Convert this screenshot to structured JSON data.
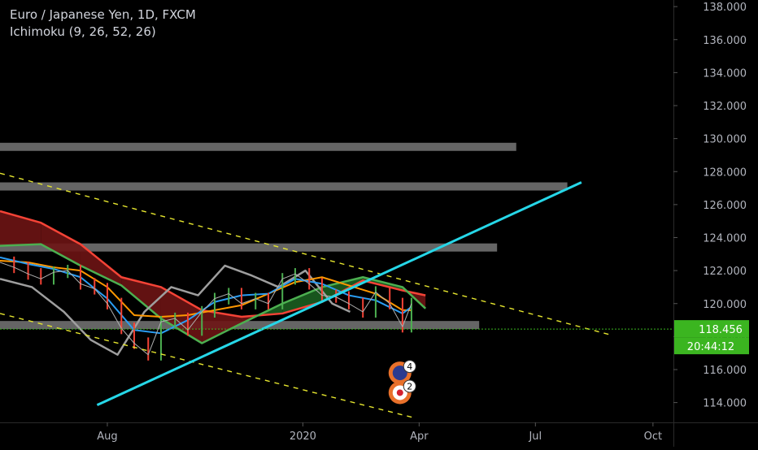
{
  "header": {
    "title": "Euro / Japanese Yen, 1D, FXCM",
    "indicator": "Ichimoku (9, 26, 52, 26)"
  },
  "colors": {
    "background": "#000000",
    "price_line": "#b0b0b0",
    "conversion_line": "#2a9df4",
    "base_line": "#ff9800",
    "lagging_span": "#9e9e9e",
    "span_a": "#4caf50",
    "span_b": "#f44336",
    "cloud_bull": "#1b5e20",
    "cloud_bear": "#6d1414",
    "trend_line": "#26d7e8",
    "channel_line": "#e6e62e",
    "zone": "#777777",
    "price_label_bg": "#3bb520",
    "current_level_line": "#3bb520"
  },
  "chart_data": {
    "type": "line",
    "title": "Euro / Japanese Yen, 1D, FXCM",
    "xlabel": "",
    "ylabel": "",
    "ylim": [
      112.8,
      138.4
    ],
    "xlim": [
      "2019-05-09",
      "2020-10-17"
    ],
    "y_ticks": [
      "114.000",
      "116.000",
      "118.000",
      "120.000",
      "122.000",
      "124.000",
      "126.000",
      "128.000",
      "130.000",
      "132.000",
      "134.000",
      "136.000",
      "138.000"
    ],
    "x_ticks": [
      "Aug",
      "2020",
      "Apr",
      "Jul",
      "Oct"
    ],
    "x_tick_dates": [
      "2019-08-01",
      "2020-01-01",
      "2020-04-01",
      "2020-07-01",
      "2020-10-01"
    ],
    "current_price": "118.456",
    "countdown": "20:44:12",
    "series": [
      {
        "role": "price",
        "x": [
          "2019-05-09",
          "2019-05-20",
          "2019-05-31",
          "2019-06-10",
          "2019-06-20",
          "2019-07-01",
          "2019-07-11",
          "2019-07-22",
          "2019-08-01",
          "2019-08-12",
          "2019-08-22",
          "2019-09-02",
          "2019-09-12",
          "2019-09-23",
          "2019-10-03",
          "2019-10-14",
          "2019-10-24",
          "2019-11-04",
          "2019-11-14",
          "2019-11-25",
          "2019-12-05",
          "2019-12-16",
          "2019-12-26",
          "2020-01-06",
          "2020-01-16",
          "2020-01-27",
          "2020-02-06",
          "2020-02-17",
          "2020-02-27",
          "2020-03-09",
          "2020-03-19",
          "2020-03-26"
        ],
        "y": [
          122.5,
          122.2,
          121.8,
          121.5,
          121.9,
          122.0,
          121.2,
          120.9,
          120.0,
          118.5,
          117.6,
          116.9,
          118.9,
          119.1,
          118.4,
          119.5,
          120.3,
          120.6,
          120.0,
          120.3,
          120.0,
          121.5,
          121.8,
          121.2,
          120.5,
          120.4,
          120.0,
          119.5,
          120.7,
          120.0,
          118.6,
          120.0
        ]
      },
      {
        "role": "conversion",
        "x": [
          "2019-05-09",
          "2019-05-31",
          "2019-06-20",
          "2019-07-11",
          "2019-08-01",
          "2019-08-22",
          "2019-09-12",
          "2019-10-03",
          "2019-10-24",
          "2019-11-14",
          "2019-12-05",
          "2019-12-26",
          "2020-01-16",
          "2020-02-06",
          "2020-02-27",
          "2020-03-19",
          "2020-03-26"
        ],
        "y": [
          122.8,
          122.4,
          122.1,
          121.6,
          120.3,
          118.4,
          118.2,
          119.0,
          120.1,
          120.5,
          120.6,
          121.5,
          121.2,
          120.5,
          120.2,
          119.4,
          119.8
        ]
      },
      {
        "role": "base",
        "x": [
          "2019-05-09",
          "2019-05-31",
          "2019-06-20",
          "2019-07-11",
          "2019-08-01",
          "2019-08-22",
          "2019-09-12",
          "2019-10-03",
          "2019-10-24",
          "2019-11-14",
          "2019-12-05",
          "2019-12-26",
          "2020-01-16",
          "2020-02-06",
          "2020-02-27",
          "2020-03-19",
          "2020-03-26"
        ],
        "y": [
          122.6,
          122.5,
          122.2,
          122.0,
          121.0,
          119.3,
          119.2,
          119.3,
          119.6,
          119.9,
          120.6,
          121.3,
          121.6,
          121.1,
          120.6,
          119.6,
          119.6
        ]
      },
      {
        "role": "lagging",
        "x": [
          "2019-05-09",
          "2019-06-03",
          "2019-06-28",
          "2019-07-19",
          "2019-08-09",
          "2019-08-30",
          "2019-09-20",
          "2019-10-11",
          "2019-11-01",
          "2019-11-22",
          "2019-12-13",
          "2020-01-03",
          "2020-01-24",
          "2020-02-07"
        ],
        "y": [
          121.5,
          121.0,
          119.5,
          117.8,
          116.9,
          119.5,
          121.0,
          120.5,
          122.3,
          121.7,
          121.0,
          122.0,
          120.0,
          119.5
        ]
      },
      {
        "role": "span_a",
        "x": [
          "2019-05-09",
          "2019-06-10",
          "2019-07-11",
          "2019-08-12",
          "2019-09-12",
          "2019-10-14",
          "2019-11-14",
          "2019-12-16",
          "2020-01-16",
          "2020-02-17",
          "2020-03-19",
          "2020-04-06"
        ],
        "y": [
          123.5,
          123.6,
          122.3,
          121.1,
          119.1,
          117.6,
          118.8,
          120.0,
          121.0,
          121.6,
          121.0,
          119.7
        ]
      },
      {
        "role": "span_b",
        "x": [
          "2019-05-09",
          "2019-06-10",
          "2019-07-11",
          "2019-08-12",
          "2019-09-12",
          "2019-10-14",
          "2019-11-14",
          "2019-12-16",
          "2020-01-16",
          "2020-02-17",
          "2020-03-19",
          "2020-04-06"
        ],
        "y": [
          125.6,
          124.9,
          123.6,
          121.6,
          121.0,
          119.6,
          119.2,
          119.4,
          120.1,
          121.4,
          120.8,
          120.5
        ]
      }
    ],
    "horizontal_zones": [
      {
        "y": 129.5,
        "x_end": "2020-06-16"
      },
      {
        "y": 127.1,
        "x_end": "2020-07-26"
      },
      {
        "y": 123.4,
        "x_end": "2020-06-01"
      },
      {
        "y": 118.7,
        "x_end": "2020-05-18"
      }
    ],
    "current_level": 118.456,
    "trend_line": {
      "x": [
        "2019-07-24",
        "2020-08-06"
      ],
      "y": [
        113.85,
        127.35
      ]
    },
    "channel_lines": [
      {
        "x": [
          "2019-05-09",
          "2020-08-29"
        ],
        "y": [
          127.9,
          118.1
        ]
      },
      {
        "x": [
          "2019-05-09",
          "2020-03-27"
        ],
        "y": [
          119.4,
          113.1
        ]
      }
    ],
    "event_badges": [
      {
        "x": "2020-03-17",
        "y": 115.8,
        "count": "4"
      },
      {
        "x": "2020-03-17",
        "y": 114.6,
        "count": "2"
      }
    ]
  }
}
